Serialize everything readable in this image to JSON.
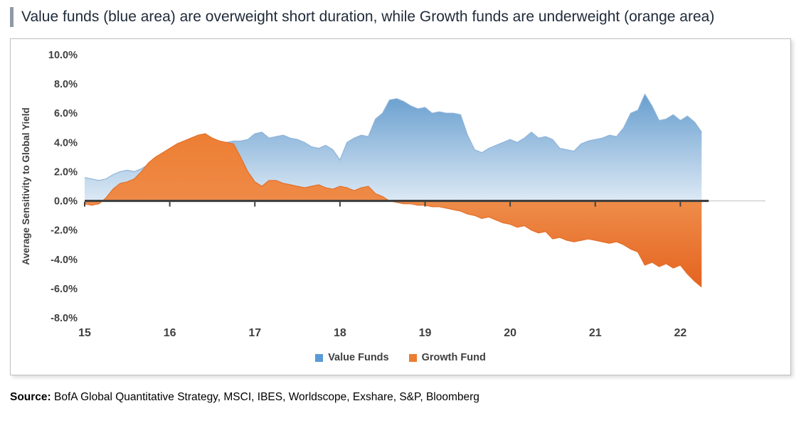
{
  "title": "Value funds (blue area) are overweight short duration, while Growth funds are underweight (orange area)",
  "source": {
    "label": "Source:",
    "text": " BofA Global Quantitative Strategy, MSCI, IBES, Worldscope, Exshare, S&P, Bloomberg"
  },
  "chart_data": {
    "type": "area",
    "title": "",
    "xlabel": "",
    "ylabel": "Average Sensitivity to Global Yield",
    "ylim": [
      -8,
      10
    ],
    "xlim": [
      15,
      23
    ],
    "grid": false,
    "legend_position": "bottom",
    "y_ticks": {
      "values": [
        10,
        8,
        6,
        4,
        2,
        0,
        -2,
        -4,
        -6,
        -8
      ],
      "labels": [
        "10.0%",
        "8.0%",
        "6.0%",
        "4.0%",
        "2.0%",
        "0.0%",
        "-2.0%",
        "-4.0%",
        "-6.0%",
        "-8.0%"
      ]
    },
    "x_ticks": {
      "values": [
        15,
        16,
        17,
        18,
        19,
        20,
        21,
        22
      ],
      "labels": [
        "15",
        "16",
        "17",
        "18",
        "19",
        "20",
        "21",
        "22"
      ]
    },
    "x": [
      15.0,
      15.083,
      15.167,
      15.25,
      15.333,
      15.417,
      15.5,
      15.583,
      15.667,
      15.75,
      15.833,
      15.917,
      16.0,
      16.083,
      16.167,
      16.25,
      16.333,
      16.417,
      16.5,
      16.583,
      16.667,
      16.75,
      16.833,
      16.917,
      17.0,
      17.083,
      17.167,
      17.25,
      17.333,
      17.417,
      17.5,
      17.583,
      17.667,
      17.75,
      17.833,
      17.917,
      18.0,
      18.083,
      18.167,
      18.25,
      18.333,
      18.417,
      18.5,
      18.583,
      18.667,
      18.75,
      18.833,
      18.917,
      19.0,
      19.083,
      19.167,
      19.25,
      19.333,
      19.417,
      19.5,
      19.583,
      19.667,
      19.75,
      19.833,
      19.917,
      20.0,
      20.083,
      20.167,
      20.25,
      20.333,
      20.417,
      20.5,
      20.583,
      20.667,
      20.75,
      20.833,
      20.917,
      21.0,
      21.083,
      21.167,
      21.25,
      21.333,
      21.417,
      21.5,
      21.583,
      21.667,
      21.75,
      21.833,
      21.917,
      22.0,
      22.083,
      22.167,
      22.25
    ],
    "series": [
      {
        "name": "Value Funds",
        "color": "#5B9BD5",
        "values": [
          1.6,
          1.5,
          1.4,
          1.5,
          1.8,
          2.0,
          2.1,
          2.0,
          2.2,
          2.5,
          2.8,
          3.0,
          3.2,
          3.5,
          3.6,
          3.7,
          3.8,
          3.9,
          3.9,
          4.0,
          4.0,
          4.1,
          4.1,
          4.2,
          4.6,
          4.7,
          4.3,
          4.4,
          4.5,
          4.3,
          4.2,
          4.0,
          3.7,
          3.6,
          3.8,
          3.5,
          2.8,
          4.0,
          4.3,
          4.5,
          4.4,
          5.6,
          6.0,
          6.9,
          7.0,
          6.8,
          6.5,
          6.3,
          6.4,
          6.0,
          6.1,
          6.0,
          6.0,
          5.9,
          4.5,
          3.5,
          3.3,
          3.6,
          3.8,
          4.0,
          4.2,
          4.0,
          4.3,
          4.7,
          4.3,
          4.4,
          4.2,
          3.6,
          3.5,
          3.4,
          3.9,
          4.1,
          4.2,
          4.3,
          4.5,
          4.4,
          5.0,
          6.0,
          6.2,
          7.3,
          6.5,
          5.5,
          5.6,
          5.9,
          5.5,
          5.8,
          5.4,
          4.7
        ]
      },
      {
        "name": "Growth Fund",
        "color": "#ED7D31",
        "values": [
          -0.2,
          -0.3,
          -0.2,
          0.2,
          0.8,
          1.2,
          1.3,
          1.5,
          2.0,
          2.6,
          3.0,
          3.3,
          3.6,
          3.9,
          4.1,
          4.3,
          4.5,
          4.6,
          4.3,
          4.1,
          4.0,
          3.9,
          3.0,
          2.0,
          1.3,
          1.0,
          1.4,
          1.4,
          1.2,
          1.1,
          1.0,
          0.9,
          1.0,
          1.1,
          0.9,
          0.8,
          1.0,
          0.9,
          0.7,
          0.9,
          1.0,
          0.5,
          0.3,
          0.0,
          -0.1,
          -0.2,
          -0.2,
          -0.3,
          -0.3,
          -0.4,
          -0.4,
          -0.5,
          -0.6,
          -0.7,
          -0.9,
          -1.0,
          -1.2,
          -1.1,
          -1.3,
          -1.5,
          -1.6,
          -1.8,
          -1.7,
          -2.0,
          -2.2,
          -2.1,
          -2.6,
          -2.5,
          -2.7,
          -2.8,
          -2.7,
          -2.6,
          -2.7,
          -2.8,
          -2.9,
          -2.8,
          -3.0,
          -3.3,
          -3.5,
          -4.4,
          -4.2,
          -4.5,
          -4.3,
          -4.6,
          -4.4,
          -5.0,
          -5.5,
          -5.9
        ]
      }
    ]
  }
}
